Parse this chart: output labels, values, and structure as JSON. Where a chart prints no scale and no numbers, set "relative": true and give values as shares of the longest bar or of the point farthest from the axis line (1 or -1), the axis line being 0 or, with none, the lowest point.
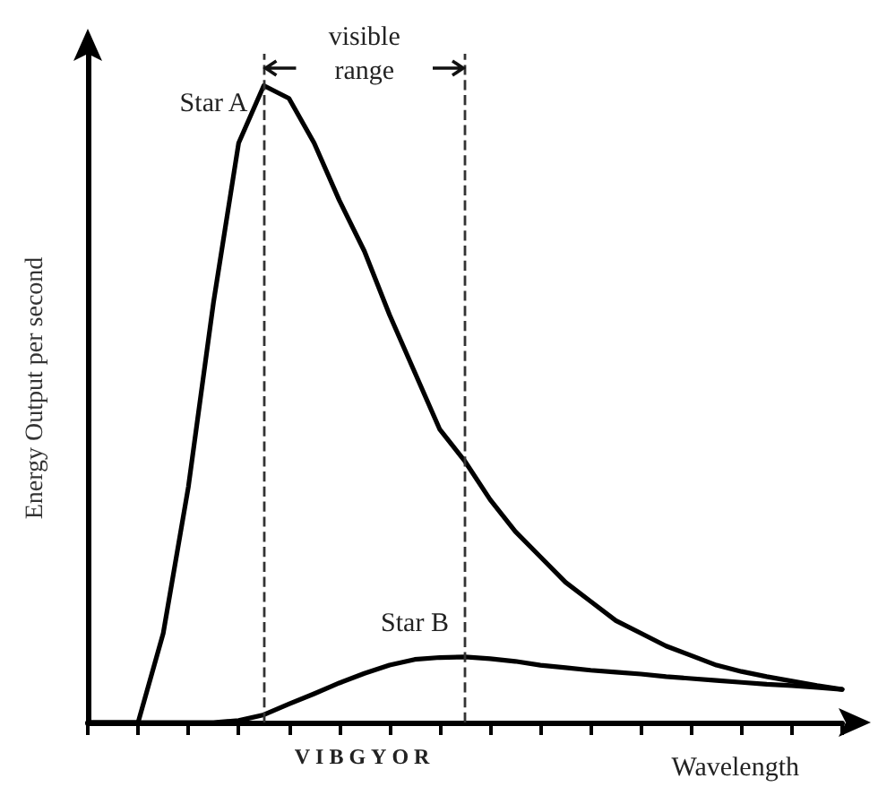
{
  "chart_data": {
    "type": "line",
    "relative": true,
    "xlabel": "Wavelength",
    "ylabel": "Energy Output per second",
    "categories": [
      null,
      null,
      null,
      null,
      null,
      null,
      null,
      null,
      null,
      null,
      null,
      null,
      null,
      null,
      null,
      null,
      null,
      null,
      null,
      null,
      null,
      null,
      null,
      null,
      null,
      null,
      null,
      null,
      null,
      null,
      null
    ],
    "grid": false,
    "legend": false,
    "marker": "none",
    "line_style": "solid",
    "series": [
      {
        "name": "Star A",
        "color": "#000000",
        "values": [
          0,
          0,
          0,
          0.14,
          0.37,
          0.66,
          0.91,
          1,
          0.98,
          0.91,
          0.82,
          0.74,
          0.64,
          0.55,
          0.46,
          0.41,
          0.35,
          0.3,
          0.26,
          0.22,
          0.19,
          0.16,
          0.14,
          0.12,
          0.105,
          0.09,
          0.08,
          0.072,
          0.065,
          0.058,
          0.052
        ]
      },
      {
        "name": "Star B",
        "color": "#000000",
        "values": [
          0,
          0,
          0,
          0,
          0,
          0,
          0.003,
          0.012,
          0.029,
          0.045,
          0.062,
          0.077,
          0.09,
          0.099,
          0.102,
          0.103,
          0.1,
          0.096,
          0.09,
          0.086,
          0.082,
          0.079,
          0.076,
          0.072,
          0.069,
          0.066,
          0.063,
          0.06,
          0.058,
          0.055,
          0.052
        ]
      }
    ],
    "annotations": [
      "visible range",
      "VIBGYOR"
    ]
  }
}
